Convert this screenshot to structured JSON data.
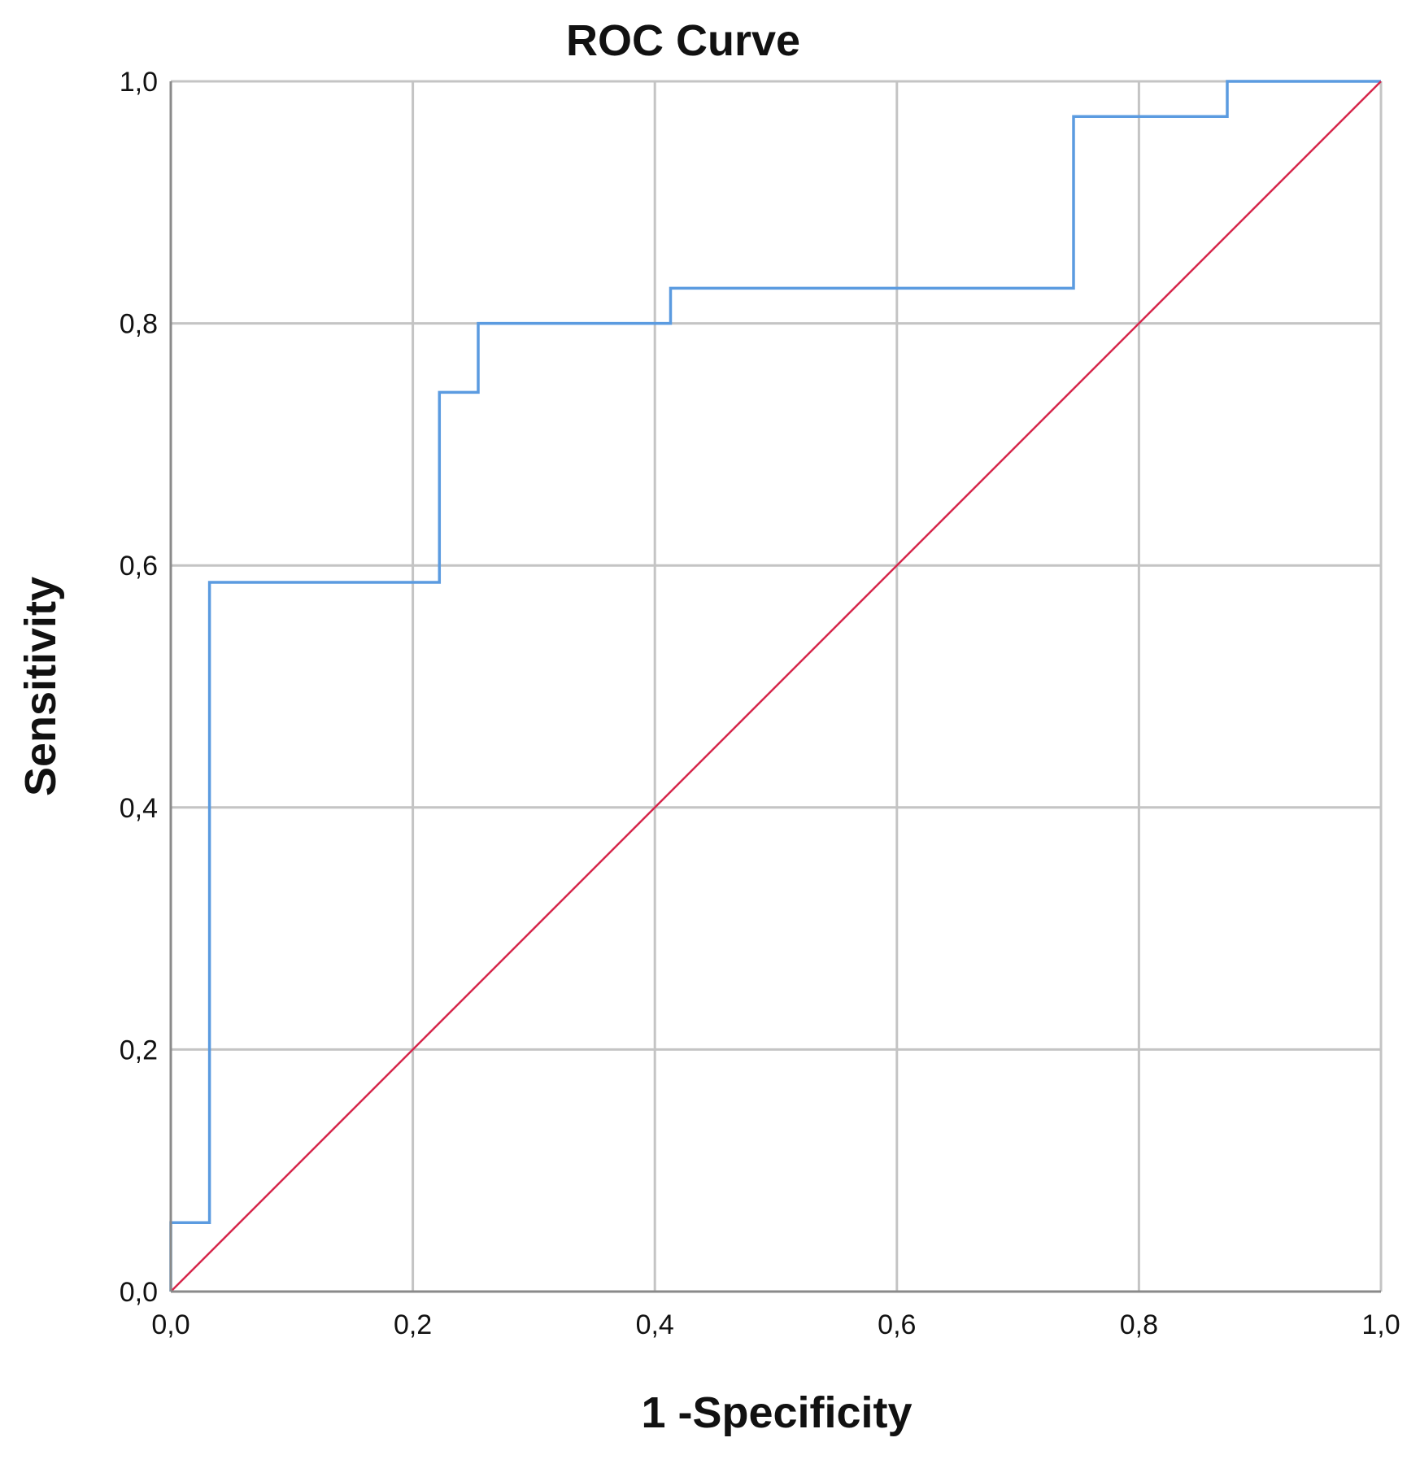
{
  "chart_data": {
    "type": "line",
    "title": "ROC Curve",
    "xlabel": "1 -Specificity",
    "ylabel": "Sensitivity",
    "xlim": [
      0,
      1
    ],
    "ylim": [
      0,
      1
    ],
    "x_ticks": [
      "0,0",
      "0,2",
      "0,4",
      "0,6",
      "0,8",
      "1,0"
    ],
    "y_ticks": [
      "0,0",
      "0,2",
      "0,4",
      "0,6",
      "0,8",
      "1,0"
    ],
    "grid": true,
    "series": [
      {
        "color": "#5b9be0",
        "step": true,
        "x": [
          0.0,
          0.0,
          0.032,
          0.032,
          0.222,
          0.222,
          0.254,
          0.254,
          0.413,
          0.413,
          0.746,
          0.746,
          0.873,
          0.873,
          1.0
        ],
        "y": [
          0.0,
          0.057,
          0.057,
          0.586,
          0.586,
          0.743,
          0.743,
          0.8,
          0.8,
          0.829,
          0.829,
          0.971,
          0.971,
          1.0,
          1.0
        ]
      },
      {
        "color": "#d6264b",
        "step": false,
        "x": [
          0,
          1
        ],
        "y": [
          0,
          1
        ]
      }
    ]
  }
}
